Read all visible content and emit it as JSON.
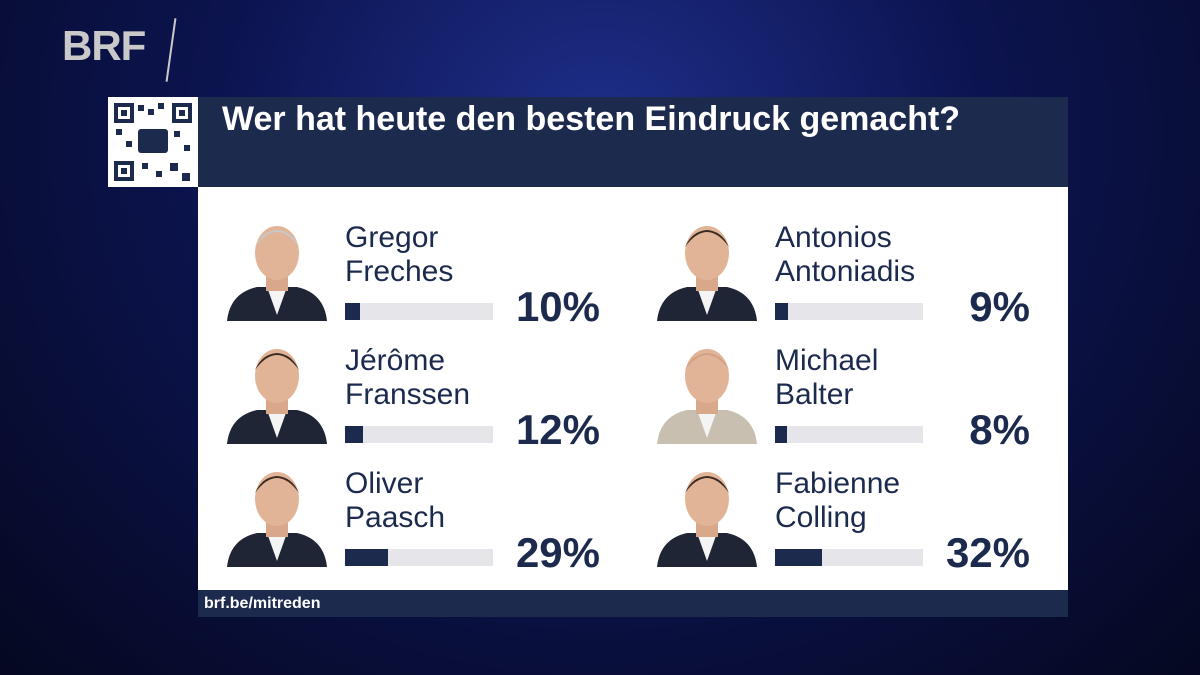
{
  "logo": "BRF",
  "footer": "brf.be/mitreden",
  "chart_data": {
    "type": "bar",
    "title": "Wer hat heute den besten Eindruck gemacht?",
    "categories": [
      "Gregor Freches",
      "Antonios Antoniadis",
      "Jérôme Franssen",
      "Michael Balter",
      "Oliver Paasch",
      "Fabienne Colling"
    ],
    "values": [
      10,
      9,
      12,
      8,
      29,
      32
    ],
    "value_labels": [
      "10%",
      "9%",
      "12%",
      "8%",
      "29%",
      "32%"
    ],
    "xlim": [
      0,
      100
    ],
    "color": "#1c2a4e"
  }
}
